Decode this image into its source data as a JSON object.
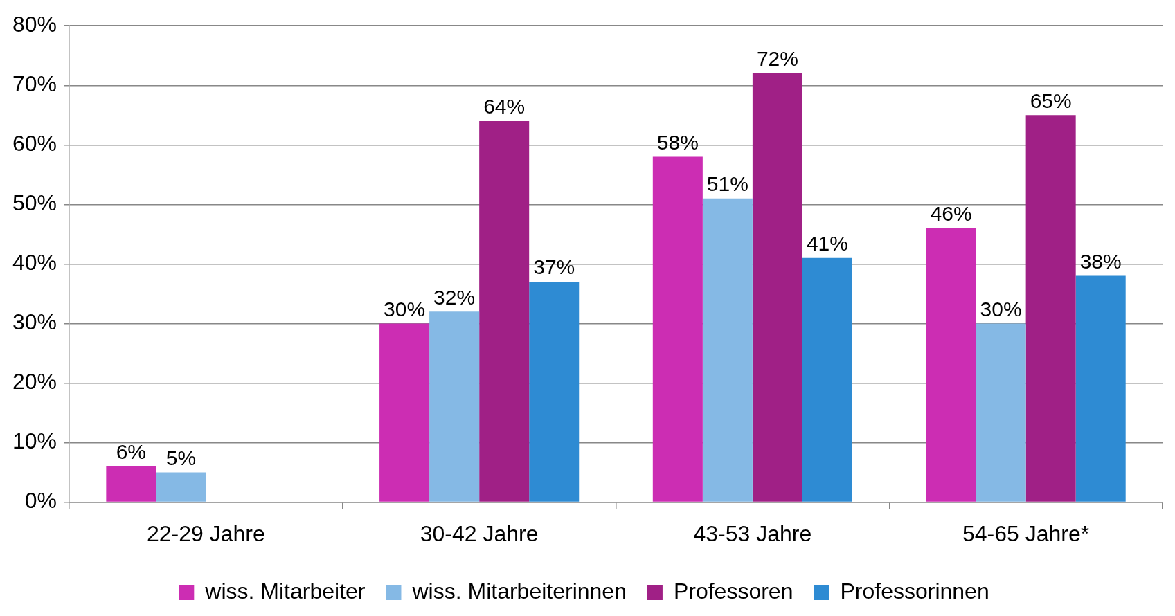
{
  "chart_data": {
    "type": "bar",
    "categories": [
      "22-29 Jahre",
      "30-42 Jahre",
      "43-53 Jahre",
      "54-65 Jahre*"
    ],
    "series": [
      {
        "name": "wiss. Mitarbeiter",
        "color": "#cc2db3",
        "values": [
          6,
          30,
          58,
          46
        ],
        "value_labels": [
          "6%",
          "30%",
          "58%",
          "46%"
        ]
      },
      {
        "name": "wiss. Mitarbeiterinnen",
        "color": "#85b9e5",
        "values": [
          5,
          32,
          51,
          30
        ],
        "value_labels": [
          "5%",
          "32%",
          "51%",
          "30%"
        ]
      },
      {
        "name": "Professoren",
        "color": "#a02086",
        "values": [
          null,
          64,
          72,
          65
        ],
        "value_labels": [
          null,
          "64%",
          "72%",
          "65%"
        ]
      },
      {
        "name": "Professorinnen",
        "color": "#2e8bd3",
        "values": [
          null,
          37,
          41,
          38
        ],
        "value_labels": [
          null,
          "37%",
          "41%",
          "38%"
        ]
      }
    ],
    "ylim": [
      0,
      80
    ],
    "yticks": [
      {
        "value": 0,
        "label": "0%"
      },
      {
        "value": 10,
        "label": "10%"
      },
      {
        "value": 20,
        "label": "20%"
      },
      {
        "value": 30,
        "label": "30%"
      },
      {
        "value": 40,
        "label": "40%"
      },
      {
        "value": 50,
        "label": "50%"
      },
      {
        "value": 60,
        "label": "60%"
      },
      {
        "value": 70,
        "label": "70%"
      },
      {
        "value": 80,
        "label": "80%"
      }
    ],
    "grid": "y",
    "legend": "bottom"
  }
}
